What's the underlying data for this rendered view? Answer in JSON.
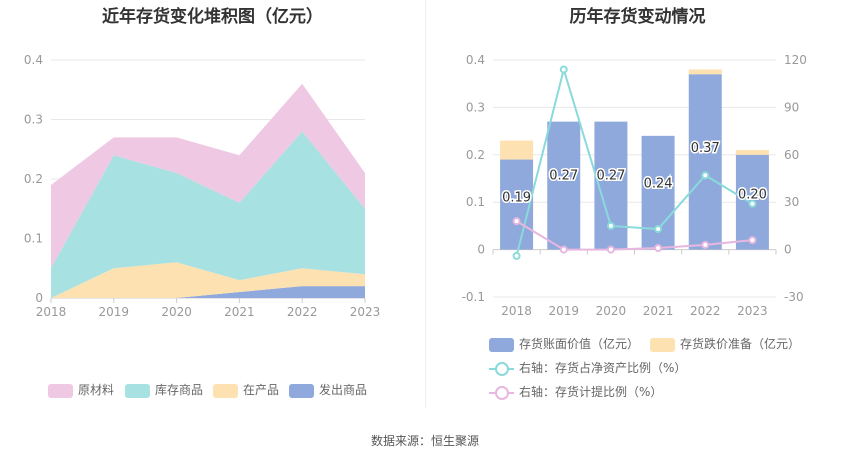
{
  "source_label": "数据来源：恒生聚源",
  "chart_data": [
    {
      "type": "area",
      "stacked": true,
      "title": "近年存货变化堆积图（亿元）",
      "x": [
        "2018",
        "2019",
        "2020",
        "2021",
        "2022",
        "2023"
      ],
      "ylim": [
        0,
        0.4
      ],
      "yticks": [
        "0",
        "0.1",
        "0.2",
        "0.3",
        "0.4"
      ],
      "grid": true,
      "legend_position": "bottom",
      "series": [
        {
          "name": "发出商品",
          "color": "#8fa9dc",
          "values": [
            0,
            0,
            0,
            0.01,
            0.02,
            0.02
          ]
        },
        {
          "name": "在产品",
          "color": "#fde1b0",
          "values": [
            0,
            0.05,
            0.06,
            0.02,
            0.03,
            0.02
          ]
        },
        {
          "name": "库存商品",
          "color": "#a7e1e2",
          "values": [
            0.05,
            0.19,
            0.15,
            0.13,
            0.23,
            0.11
          ]
        },
        {
          "name": "原材料",
          "color": "#efc9e3",
          "values": [
            0.14,
            0.03,
            0.06,
            0.08,
            0.08,
            0.06
          ]
        }
      ],
      "legend_order": [
        "原材料",
        "库存商品",
        "在产品",
        "发出商品"
      ]
    },
    {
      "type": "bar",
      "title": "历年存货变动情况",
      "categories": [
        "2018",
        "2019",
        "2020",
        "2021",
        "2022",
        "2023"
      ],
      "ylim_left": [
        -0.1,
        0.4
      ],
      "yticks_left": [
        "-0.1",
        "0",
        "0.1",
        "0.2",
        "0.3",
        "0.4"
      ],
      "ylim_right": [
        -30,
        120
      ],
      "yticks_right": [
        "-30",
        "0",
        "30",
        "60",
        "90",
        "120"
      ],
      "legend_position": "bottom",
      "bar_series": [
        {
          "name": "存货账面价值（亿元）",
          "color": "#8fa9dc",
          "values": [
            0.19,
            0.27,
            0.27,
            0.24,
            0.37,
            0.2
          ],
          "labels": [
            "0.19",
            "0.27",
            "0.27",
            "0.24",
            "0.37",
            "0.20"
          ]
        },
        {
          "name": "存货跌价准备（亿元）",
          "color": "#fde1b0",
          "values": [
            0.04,
            0,
            0,
            0,
            0.01,
            0.01
          ]
        }
      ],
      "line_series": [
        {
          "name": "右轴：存货占净资产比例（%）",
          "color": "#8adadb",
          "axis": "right",
          "values": [
            -4,
            114,
            15,
            13,
            47,
            29
          ]
        },
        {
          "name": "右轴：存货计提比例（%）",
          "color": "#e7b7df",
          "axis": "right",
          "values": [
            18,
            0,
            0,
            1,
            3,
            6
          ]
        }
      ]
    }
  ]
}
